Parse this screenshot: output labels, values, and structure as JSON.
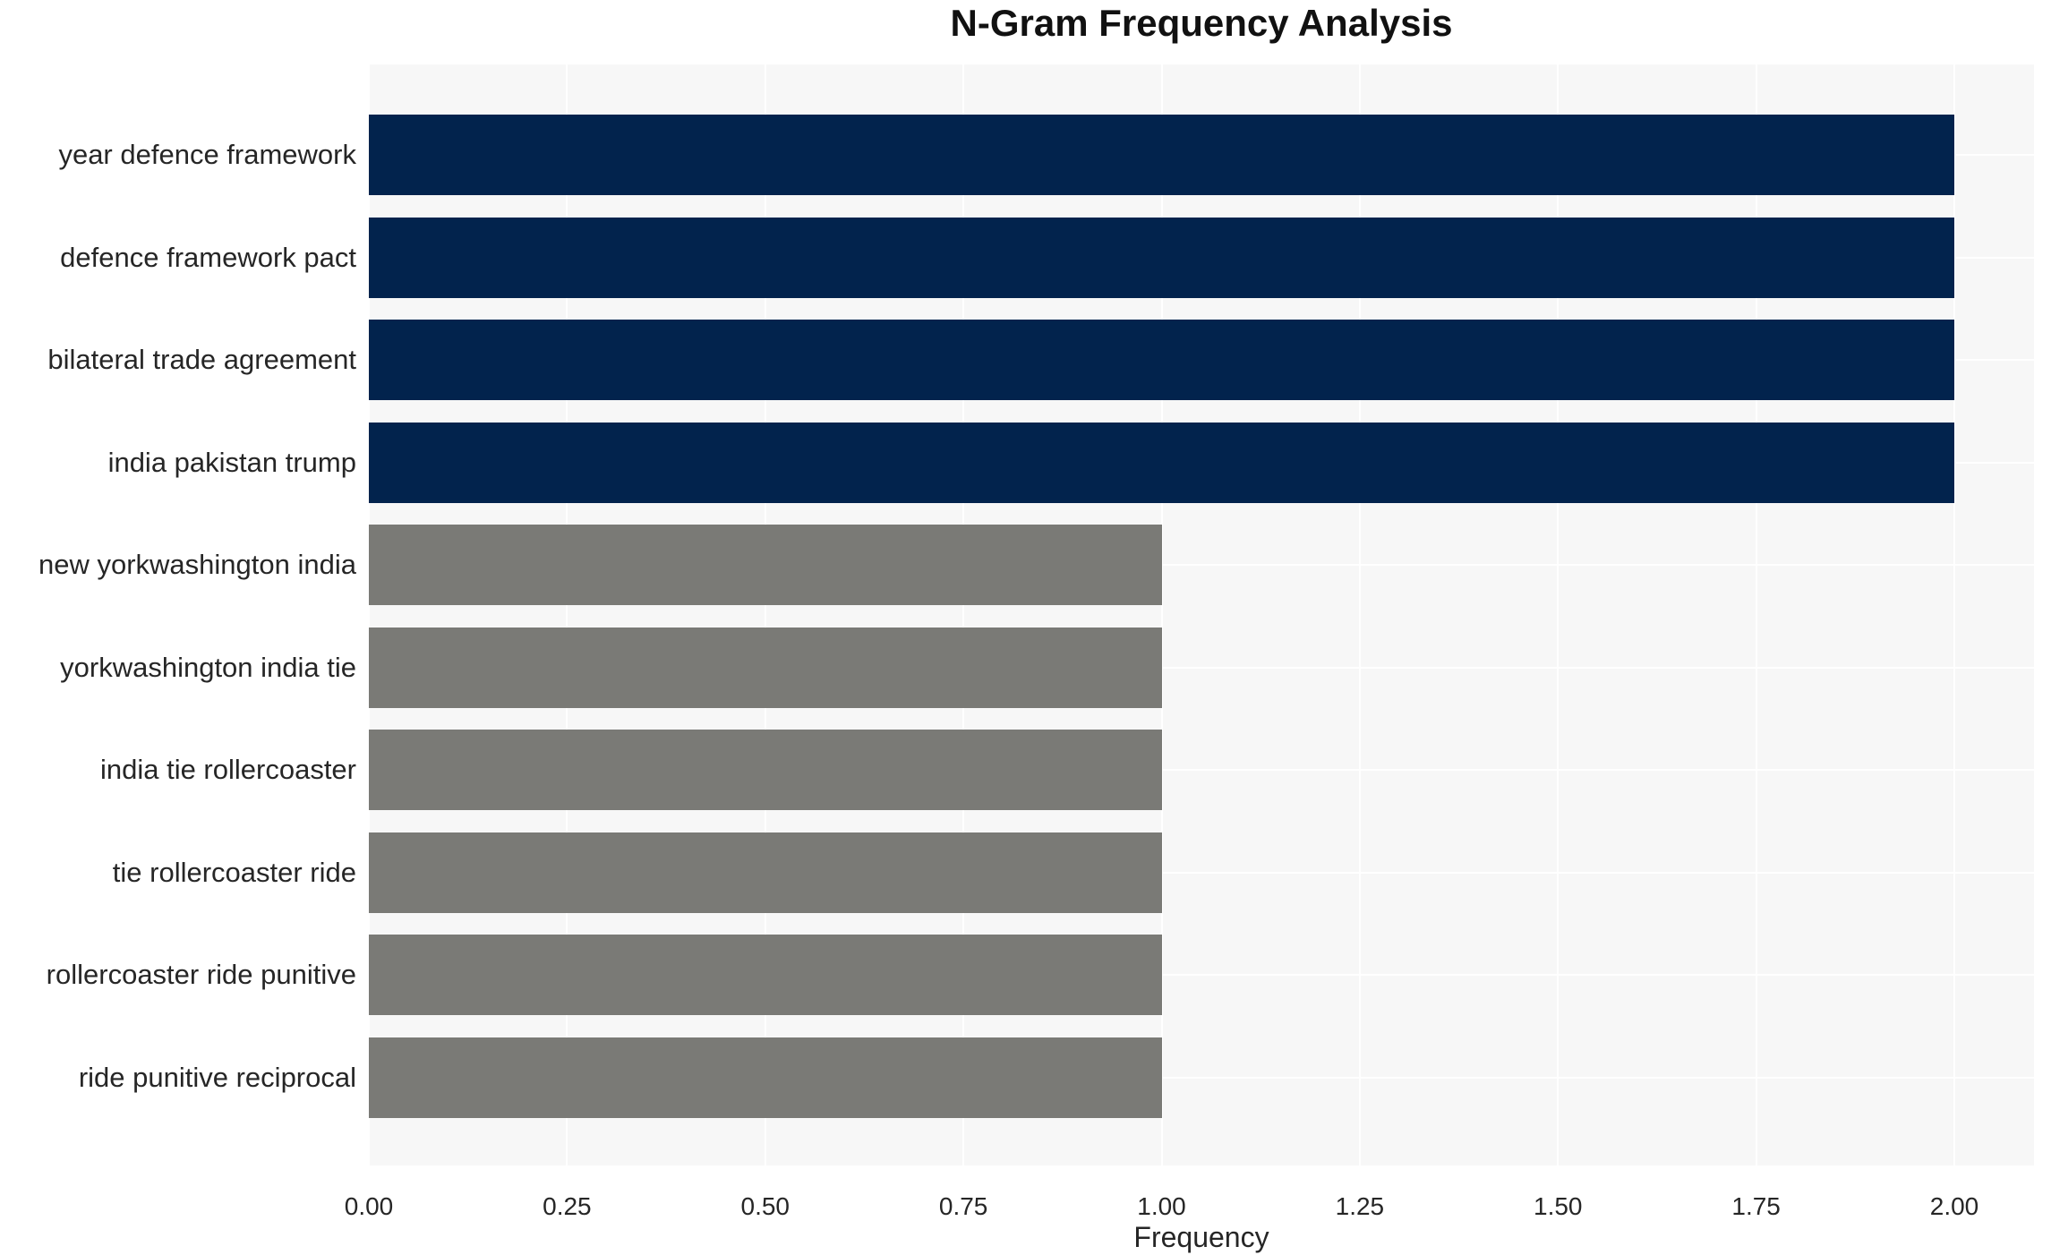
{
  "title": "N-Gram Frequency Analysis",
  "colors": {
    "bar_high_freq": "#02234d",
    "bar_low_freq": "#7a7a76",
    "plot_background": "#f7f7f7",
    "gridline": "#ffffff",
    "text": "#262626",
    "title_text": "#111111",
    "figure_background": "#ffffff"
  },
  "chart_data": {
    "type": "bar",
    "orientation": "horizontal",
    "title": "N-Gram Frequency Analysis",
    "xlabel": "Frequency",
    "ylabel": "",
    "grid": true,
    "legend": false,
    "xlim": [
      0,
      2.1
    ],
    "xticks": [
      {
        "value": 0.0,
        "label": "0.00"
      },
      {
        "value": 0.25,
        "label": "0.25"
      },
      {
        "value": 0.5,
        "label": "0.50"
      },
      {
        "value": 0.75,
        "label": "0.75"
      },
      {
        "value": 1.0,
        "label": "1.00"
      },
      {
        "value": 1.25,
        "label": "1.25"
      },
      {
        "value": 1.5,
        "label": "1.50"
      },
      {
        "value": 1.75,
        "label": "1.75"
      },
      {
        "value": 2.0,
        "label": "2.00"
      }
    ],
    "categories": [
      "year defence framework",
      "defence framework pact",
      "bilateral trade agreement",
      "india pakistan trump",
      "new yorkwashington india",
      "yorkwashington india tie",
      "india tie rollercoaster",
      "tie rollercoaster ride",
      "rollercoaster ride punitive",
      "ride punitive reciprocal"
    ],
    "values": [
      2,
      2,
      2,
      2,
      1,
      1,
      1,
      1,
      1,
      1
    ],
    "bar_colors": [
      "#02234d",
      "#02234d",
      "#02234d",
      "#02234d",
      "#7a7a76",
      "#7a7a76",
      "#7a7a76",
      "#7a7a76",
      "#7a7a76",
      "#7a7a76"
    ]
  }
}
